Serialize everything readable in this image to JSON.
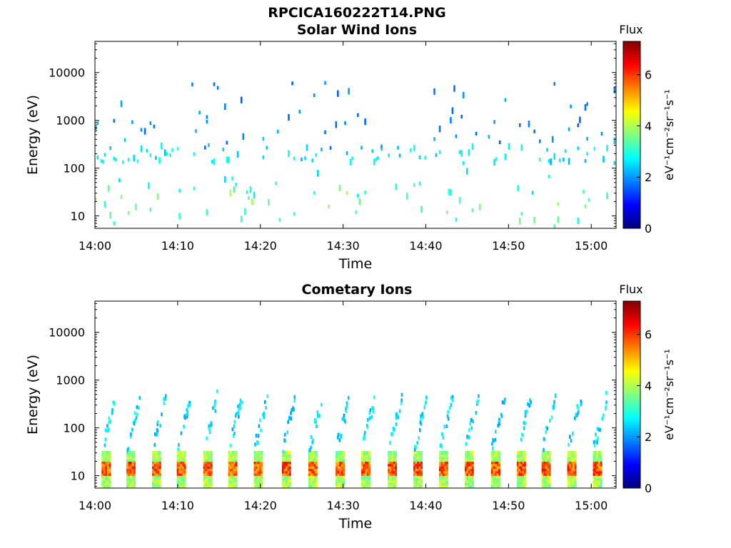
{
  "figure": {
    "title": "RPCICA160222T14.PNG"
  },
  "colormap": {
    "stops": [
      "#00007f",
      "#0000ff",
      "#0080ff",
      "#00ffff",
      "#80ff80",
      "#ffff00",
      "#ff8000",
      "#ff0000",
      "#7f0000"
    ]
  },
  "chart_data": [
    {
      "type": "heatmap",
      "title": "Solar Wind Ions",
      "xlabel": "Time",
      "ylabel": "Energy (eV)",
      "x_ticks": [
        "14:00",
        "14:10",
        "14:20",
        "14:30",
        "14:40",
        "14:50",
        "15:00"
      ],
      "x_tick_minutes": [
        0,
        10,
        20,
        30,
        40,
        50,
        60
      ],
      "xlim_minutes": [
        0,
        63
      ],
      "y_scale": "log",
      "ylim": [
        5.5,
        45000
      ],
      "y_ticks": [
        10,
        100,
        1000,
        10000
      ],
      "y_tick_labels": [
        "10",
        "100",
        "1000",
        "10000"
      ],
      "colorbar": {
        "label": "Flux",
        "units": "eV⁻¹cm⁻²sr⁻¹s⁻¹",
        "range": [
          0,
          7.3
        ],
        "ticks": [
          0,
          2,
          4,
          6
        ],
        "tick_labels": [
          "0",
          "2",
          "4",
          "6"
        ]
      },
      "bands": [
        {
          "center_ev": 18,
          "min_minute": 0,
          "max_minute": 63,
          "density": 0.16,
          "value_range": [
            2.8,
            4.0
          ],
          "span": 2.3
        },
        {
          "center_ev": 8,
          "min_minute": 0,
          "max_minute": 63,
          "density": 0.06,
          "value_range": [
            2.8,
            3.8
          ],
          "span": 2.0
        },
        {
          "center_ev": 200,
          "min_minute": 0,
          "max_minute": 63,
          "density": 0.3,
          "value_range": [
            2.2,
            3.0
          ],
          "span": 1.5
        },
        {
          "center_ev": 550,
          "min_minute": 0,
          "max_minute": 63,
          "density": 0.14,
          "value_range": [
            1.6,
            2.4
          ],
          "span": 2.0
        },
        {
          "center_ev": 2500,
          "min_minute": 0,
          "max_minute": 63,
          "density": 0.1,
          "value_range": [
            1.5,
            2.2
          ],
          "span": 3.0
        },
        {
          "center_ev": 50,
          "min_minute": 0,
          "max_minute": 63,
          "density": 0.05,
          "value_range": [
            2.4,
            3.2
          ],
          "span": 2.0
        }
      ]
    },
    {
      "type": "heatmap",
      "title": "Cometary Ions",
      "xlabel": "Time",
      "ylabel": "Energy (eV)",
      "x_ticks": [
        "14:00",
        "14:10",
        "14:20",
        "14:30",
        "14:40",
        "14:50",
        "15:00"
      ],
      "x_tick_minutes": [
        0,
        10,
        20,
        30,
        40,
        50,
        60
      ],
      "xlim_minutes": [
        0,
        63
      ],
      "y_scale": "log",
      "ylim": [
        5.5,
        45000
      ],
      "y_ticks": [
        10,
        100,
        1000,
        10000
      ],
      "y_tick_labels": [
        "10",
        "100",
        "1000",
        "10000"
      ],
      "colorbar": {
        "label": "Flux",
        "units": "eV⁻¹cm⁻²sr⁻¹s⁻¹",
        "range": [
          0,
          7.3
        ],
        "ticks": [
          0,
          2,
          4,
          6
        ],
        "tick_labels": [
          "0",
          "2",
          "4",
          "6"
        ]
      },
      "pulse_minutes": [
        0.8,
        3.8,
        6.9,
        9.9,
        13.1,
        16.1,
        19.2,
        22.6,
        25.8,
        29.1,
        32.2,
        35.4,
        38.5,
        41.6,
        44.7,
        47.9,
        51.0,
        54.0,
        57.1,
        60.2
      ],
      "pulse_band": {
        "min_ev": 6,
        "max_ev": 33,
        "core_value": 6.5,
        "edge_value": 3.3
      },
      "arcs": {
        "low_ev": 40,
        "high_ev": 500,
        "value_range": [
          2.0,
          3.0
        ],
        "width_minutes": 1.6
      }
    }
  ]
}
